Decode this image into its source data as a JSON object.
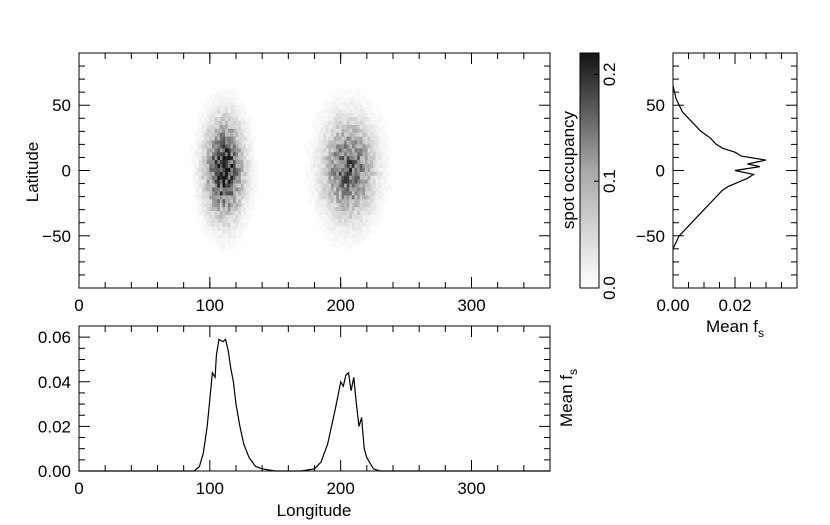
{
  "chart_data": [
    {
      "id": "occupancy-map",
      "type": "heatmap",
      "title": "",
      "xlabel": "",
      "ylabel": "Latitude",
      "xlim": [
        0,
        360
      ],
      "ylim": [
        -90,
        90
      ],
      "xticks": [
        0,
        100,
        200,
        300
      ],
      "yticks": [
        -50,
        0,
        50
      ],
      "colormap": "white-to-black",
      "regions": [
        {
          "lon_center": 110,
          "lat_center": 0,
          "lon_halfwidth": 18,
          "lat_halfwidth": 45,
          "peak_occupancy": 0.2
        },
        {
          "lon_center": 205,
          "lat_center": 0,
          "lon_halfwidth": 24,
          "lat_halfwidth": 45,
          "peak_occupancy": 0.15
        }
      ]
    },
    {
      "id": "colorbar",
      "type": "colorbar",
      "label": "spot occupancy",
      "range": [
        0,
        0.22
      ],
      "ticks": [
        "0.0",
        "0.1",
        "0.2"
      ],
      "tick_values": [
        0.0,
        0.1,
        0.2
      ]
    },
    {
      "id": "latitude-profile",
      "type": "line",
      "xlabel_main": "Mean f",
      "xlabel_sub": "s",
      "ylabel": "",
      "xlim": [
        0,
        0.04
      ],
      "ylim": [
        -90,
        90
      ],
      "xticks": [
        "0.00",
        "0.02"
      ],
      "xtick_values": [
        0.0,
        0.02
      ],
      "yticks": [
        -50,
        0,
        50
      ],
      "lat": [
        -60,
        -55,
        -50,
        -45,
        -40,
        -35,
        -30,
        -25,
        -20,
        -15,
        -12,
        -9,
        -6,
        -3,
        0,
        3,
        5,
        8,
        11,
        14,
        17,
        20,
        25,
        30,
        35,
        40,
        45,
        50,
        55,
        60,
        65
      ],
      "mean_fs": [
        0.0,
        0.001,
        0.002,
        0.004,
        0.006,
        0.008,
        0.01,
        0.012,
        0.014,
        0.016,
        0.018,
        0.021,
        0.024,
        0.026,
        0.02,
        0.028,
        0.024,
        0.03,
        0.022,
        0.02,
        0.016,
        0.014,
        0.012,
        0.009,
        0.007,
        0.005,
        0.003,
        0.002,
        0.001,
        0.0005,
        0.0
      ]
    },
    {
      "id": "longitude-profile",
      "type": "line",
      "xlabel": "Longitude",
      "ylabel_main": "Mean f",
      "ylabel_sub": "s",
      "xlim": [
        0,
        360
      ],
      "ylim": [
        0,
        0.065
      ],
      "xticks": [
        0,
        100,
        200,
        300
      ],
      "yticks": [
        "0.00",
        "0.02",
        "0.04",
        "0.06"
      ],
      "ytick_values": [
        0.0,
        0.02,
        0.04,
        0.06
      ],
      "lon": [
        0,
        88,
        92,
        95,
        98,
        100,
        102,
        104,
        105,
        107,
        110,
        112,
        114,
        116,
        118,
        120,
        123,
        126,
        130,
        135,
        140,
        150,
        170,
        180,
        185,
        190,
        193,
        196,
        198,
        200,
        202,
        204,
        206,
        208,
        210,
        212,
        214,
        216,
        218,
        220,
        222,
        225,
        230,
        360
      ],
      "mean_fs": [
        0.0,
        0.0,
        0.002,
        0.008,
        0.02,
        0.032,
        0.044,
        0.042,
        0.052,
        0.059,
        0.058,
        0.059,
        0.054,
        0.046,
        0.04,
        0.03,
        0.02,
        0.012,
        0.006,
        0.002,
        0.001,
        0.0,
        0.0,
        0.001,
        0.004,
        0.012,
        0.02,
        0.028,
        0.034,
        0.04,
        0.038,
        0.043,
        0.044,
        0.036,
        0.042,
        0.03,
        0.02,
        0.024,
        0.01,
        0.006,
        0.004,
        0.001,
        0.0,
        0.0
      ]
    }
  ]
}
